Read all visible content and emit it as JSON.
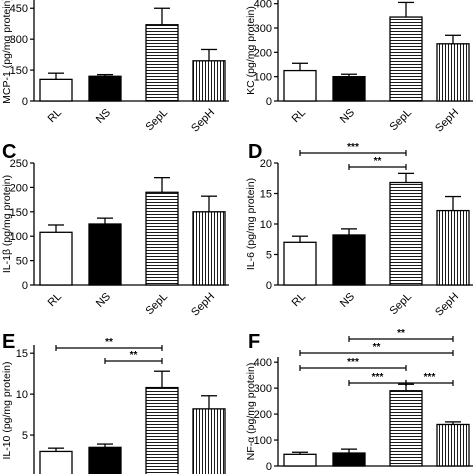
{
  "chart_data": [
    {
      "type": "bar",
      "ylabel": "MCP-1 (pg/mg protein)",
      "categories": [
        "RL",
        "NS",
        "SepL",
        "SepH"
      ],
      "values": [
        105,
        120,
        370,
        195
      ],
      "errors": [
        30,
        8,
        80,
        55
      ],
      "fills": [
        "white",
        "black",
        "hstripe",
        "vstripe"
      ],
      "ylim": [
        0,
        490
      ],
      "yticks": [
        0,
        150,
        300,
        450
      ]
    },
    {
      "type": "bar",
      "ylabel": "KC (pg/mg protein)",
      "categories": [
        "RL",
        "NS",
        "SepL",
        "SepH"
      ],
      "values": [
        125,
        100,
        345,
        235
      ],
      "errors": [
        30,
        10,
        60,
        35
      ],
      "fills": [
        "white",
        "black",
        "hstripe",
        "vstripe"
      ],
      "ylim": [
        0,
        415
      ],
      "yticks": [
        0,
        100,
        200,
        300,
        400
      ]
    },
    {
      "type": "bar",
      "panel": "C",
      "ylabel": "IL-1β (pg/mg protein)",
      "categories": [
        "RL",
        "NS",
        "SepL",
        "SepH"
      ],
      "values": [
        108,
        125,
        190,
        150
      ],
      "errors": [
        15,
        12,
        30,
        32
      ],
      "fills": [
        "white",
        "black",
        "hstripe",
        "vstripe"
      ],
      "ylim": [
        0,
        250
      ],
      "yticks": [
        0,
        50,
        100,
        150,
        200,
        250
      ]
    },
    {
      "type": "bar",
      "panel": "D",
      "ylabel": "IL-6 (pg/mg protein)",
      "categories": [
        "RL",
        "NS",
        "SepL",
        "SepH"
      ],
      "values": [
        7,
        8.2,
        16.8,
        12.2
      ],
      "errors": [
        1,
        1,
        1.5,
        2.3
      ],
      "fills": [
        "white",
        "black",
        "hstripe",
        "vstripe"
      ],
      "ylim": [
        0,
        20
      ],
      "yticks": [
        0,
        5,
        10,
        15,
        20
      ],
      "comparisons": [
        {
          "between": [
            0,
            2
          ],
          "label": "***"
        },
        {
          "between": [
            1,
            2
          ],
          "label": "**"
        }
      ]
    },
    {
      "type": "bar",
      "panel": "E",
      "ylabel": "IL-10 (pg/mg protein)",
      "values": [
        3,
        3.5,
        10.8,
        8.2
      ],
      "errors": [
        0.4,
        0.4,
        2,
        1.6
      ],
      "fills": [
        "white",
        "black",
        "hstripe",
        "vstripe"
      ],
      "ylim": [
        0,
        16
      ],
      "yticks": [
        5,
        10,
        15
      ],
      "comparisons": [
        {
          "between": [
            0,
            2
          ],
          "label": "**"
        },
        {
          "between": [
            1,
            2
          ],
          "label": "**"
        }
      ]
    },
    {
      "type": "bar",
      "panel": "F",
      "ylabel": "NF-α (pg/mg protein)",
      "values": [
        45,
        50,
        290,
        160
      ],
      "errors": [
        8,
        15,
        25,
        10
      ],
      "fills": [
        "white",
        "black",
        "hstripe",
        "vstripe"
      ],
      "ylim": [
        0,
        420
      ],
      "yticks": [
        0,
        100,
        200,
        300,
        400
      ],
      "comparisons": [
        {
          "between": [
            1,
            3
          ],
          "label": "**"
        },
        {
          "between": [
            0,
            3
          ],
          "label": "**"
        },
        {
          "between": [
            0,
            2
          ],
          "label": "***"
        },
        {
          "between": [
            1,
            2
          ],
          "label": "***"
        },
        {
          "between": [
            2,
            3
          ],
          "label": "***"
        }
      ]
    }
  ]
}
